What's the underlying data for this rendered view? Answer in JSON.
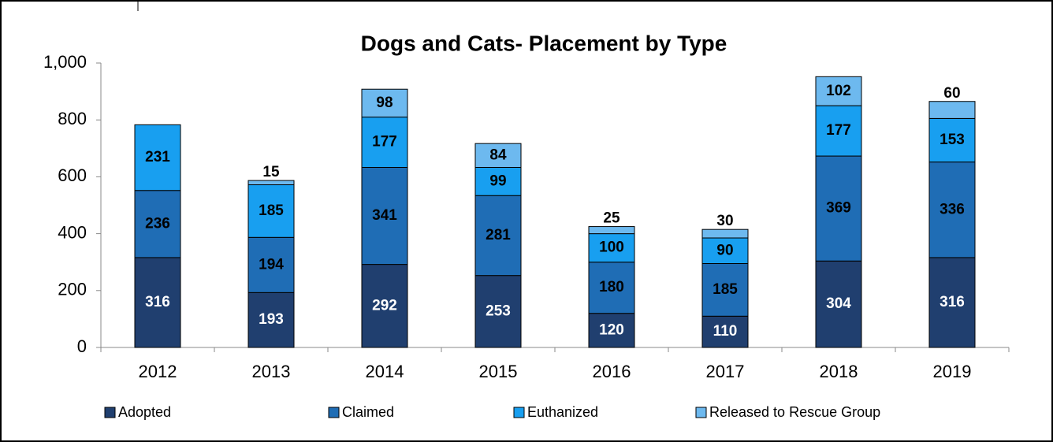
{
  "chart_data": {
    "type": "stacked_bar",
    "title": "Dogs and Cats- Placement by Type",
    "categories": [
      "2012",
      "2013",
      "2014",
      "2015",
      "2016",
      "2017",
      "2018",
      "2019"
    ],
    "series": [
      {
        "name": "Adopted",
        "color": "#203f6f",
        "values": [
          316,
          193,
          292,
          253,
          120,
          110,
          304,
          316
        ]
      },
      {
        "name": "Claimed",
        "color": "#1f6db5",
        "values": [
          236,
          194,
          341,
          281,
          180,
          185,
          369,
          336
        ]
      },
      {
        "name": "Euthanized",
        "color": "#189ff0",
        "values": [
          231,
          185,
          177,
          99,
          100,
          90,
          177,
          153
        ]
      },
      {
        "name": "Released to Rescue Group",
        "color": "#6db9ef",
        "values": [
          null,
          15,
          98,
          84,
          25,
          30,
          102,
          60
        ]
      }
    ],
    "ylim": [
      0,
      1000
    ],
    "yticks": [
      0,
      200,
      400,
      600,
      800,
      {
        "value": 1000,
        "label": "1,000"
      }
    ],
    "legend": "bottom"
  }
}
